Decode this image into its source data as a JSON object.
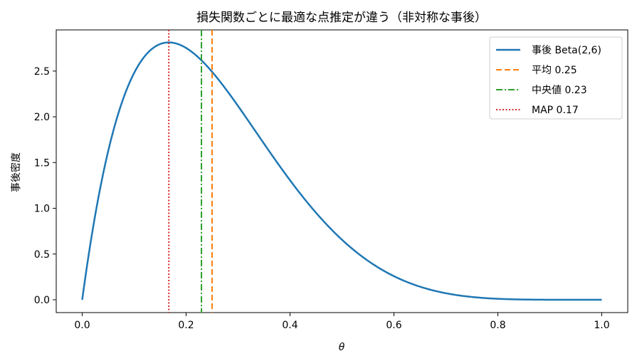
{
  "chart_data": {
    "type": "line",
    "title": "損失関数ごとに最適な点推定が違う（非対称な事後）",
    "xlabel": "θ",
    "ylabel": "事後密度",
    "xlim": [
      -0.05,
      1.05
    ],
    "ylim": [
      -0.14,
      2.95
    ],
    "x_ticks": [
      "0.0",
      "0.2",
      "0.4",
      "0.6",
      "0.8",
      "1.0"
    ],
    "y_ticks": [
      "0.0",
      "0.5",
      "1.0",
      "1.5",
      "2.0",
      "2.5"
    ],
    "grid": false,
    "legend_position": "top-right",
    "posterior": {
      "name": "事後 Beta(2,6)",
      "distribution": "Beta",
      "alpha": 2,
      "beta": 6,
      "x_range": [
        0,
        1
      ],
      "color": "#1f77b4"
    },
    "vlines": [
      {
        "name": "平均 0.25",
        "x": 0.25,
        "style": "dashed",
        "color": "#ff7f0e"
      },
      {
        "name": "中央値 0.23",
        "x": 0.2295,
        "style": "dashdot",
        "color": "#2ca02c"
      },
      {
        "name": "MAP 0.17",
        "x": 0.1667,
        "style": "dotted",
        "color": "#d62728"
      }
    ]
  }
}
